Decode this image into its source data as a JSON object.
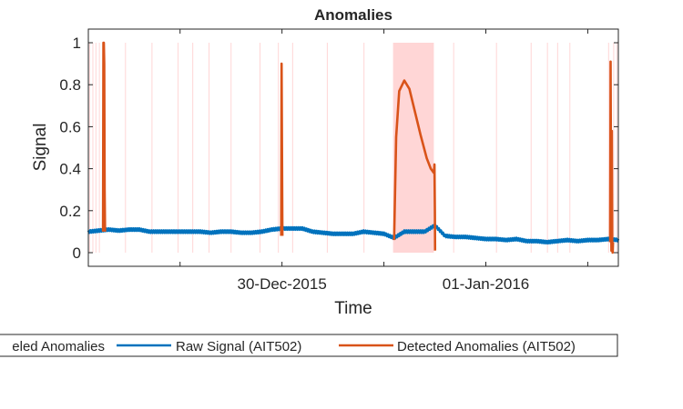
{
  "chart_data": {
    "type": "line",
    "title": "Anomalies",
    "xlabel": "Time",
    "ylabel": "Signal",
    "ylim": [
      0,
      1
    ],
    "x_range_days": [
      -0.95,
      1.65
    ],
    "y_ticks": [
      {
        "value": 0,
        "label": "0"
      },
      {
        "value": 0.2,
        "label": "0.2"
      },
      {
        "value": 0.4,
        "label": "0.4"
      },
      {
        "value": 0.6,
        "label": "0.6"
      },
      {
        "value": 0.8,
        "label": "0.8"
      },
      {
        "value": 1,
        "label": "1"
      }
    ],
    "x_ticks": [
      {
        "value": -0.5,
        "label": ""
      },
      {
        "value": 0,
        "label": "30-Dec-2015"
      },
      {
        "value": 0.5,
        "label": ""
      },
      {
        "value": 1,
        "label": "01-Jan-2016"
      },
      {
        "value": 1.5,
        "label": ""
      }
    ],
    "grid": false,
    "legend_placement": "bottom-outside",
    "labeled_anomaly_regions": [
      [
        0.545,
        0.745
      ],
      [
        -0.946,
        -0.942
      ],
      [
        -0.93,
        -0.926
      ],
      [
        -0.915,
        -0.911
      ],
      [
        -0.898,
        -0.894
      ],
      [
        -0.77,
        -0.766
      ],
      [
        -0.64,
        -0.636
      ],
      [
        -0.512,
        -0.508
      ],
      [
        -0.44,
        -0.436
      ],
      [
        -0.36,
        -0.356
      ],
      [
        -0.252,
        -0.248
      ],
      [
        -0.11,
        -0.106
      ],
      [
        -0.02,
        -0.016
      ],
      [
        0.05,
        0.054
      ],
      [
        0.22,
        0.224
      ],
      [
        0.4,
        0.404
      ],
      [
        0.84,
        0.844
      ],
      [
        1.05,
        1.054
      ],
      [
        1.22,
        1.224
      ],
      [
        1.3,
        1.304
      ],
      [
        1.35,
        1.354
      ],
      [
        1.41,
        1.414
      ],
      [
        1.6,
        1.604
      ],
      [
        1.625,
        1.629
      ],
      [
        1.64,
        1.644
      ]
    ],
    "series": [
      {
        "name": "Labeled Anomalies",
        "legend_label": "eled Anomalies",
        "color": "#FFD6D6"
      },
      {
        "name": "Raw Signal (AIT502)",
        "color": "#0072BD",
        "x": [
          -0.95,
          -0.9,
          -0.85,
          -0.8,
          -0.75,
          -0.7,
          -0.65,
          -0.6,
          -0.55,
          -0.5,
          -0.45,
          -0.4,
          -0.35,
          -0.3,
          -0.25,
          -0.2,
          -0.15,
          -0.1,
          -0.05,
          0,
          0.05,
          0.1,
          0.15,
          0.2,
          0.25,
          0.3,
          0.35,
          0.4,
          0.45,
          0.5,
          0.55,
          0.6,
          0.65,
          0.7,
          0.75,
          0.8,
          0.85,
          0.9,
          0.95,
          1,
          1.05,
          1.1,
          1.15,
          1.2,
          1.25,
          1.3,
          1.35,
          1.4,
          1.45,
          1.5,
          1.55,
          1.6,
          1.65
        ],
        "y": [
          0.1,
          0.105,
          0.11,
          0.105,
          0.11,
          0.11,
          0.1,
          0.1,
          0.1,
          0.1,
          0.1,
          0.1,
          0.095,
          0.1,
          0.1,
          0.095,
          0.095,
          0.1,
          0.11,
          0.115,
          0.115,
          0.115,
          0.1,
          0.095,
          0.09,
          0.09,
          0.09,
          0.1,
          0.095,
          0.09,
          0.07,
          0.1,
          0.1,
          0.1,
          0.13,
          0.08,
          0.075,
          0.075,
          0.07,
          0.065,
          0.065,
          0.06,
          0.065,
          0.055,
          0.055,
          0.05,
          0.055,
          0.06,
          0.055,
          0.06,
          0.06,
          0.065,
          0.06
        ]
      },
      {
        "name": "Detected Anomalies (AIT502)",
        "color": "#D95319",
        "segments": [
          {
            "x": [
              -0.878,
              -0.876,
              -0.874,
              -0.872,
              -0.87,
              -0.868
            ],
            "y": [
              0.1,
              1.0,
              1.0,
              0.9,
              0.3,
              0.1
            ]
          },
          {
            "x": [
              -0.004,
              -0.002,
              0.0,
              0.002
            ],
            "y": [
              0.08,
              0.9,
              0.5,
              0.08
            ]
          },
          {
            "x": [
              0.55,
              0.56,
              0.575,
              0.6,
              0.625,
              0.65,
              0.68,
              0.71,
              0.73,
              0.745,
              0.748,
              0.75,
              0.751
            ],
            "y": [
              0.06,
              0.55,
              0.77,
              0.82,
              0.78,
              0.68,
              0.56,
              0.45,
              0.4,
              0.38,
              0.42,
              0.2,
              0.01
            ]
          },
          {
            "x": [
              1.61,
              1.612,
              1.614,
              1.616,
              1.618,
              1.62,
              1.622,
              1.624
            ],
            "y": [
              0.05,
              0.91,
              0.3,
              0.01,
              0.58,
              0.02,
              0.0,
              0.05
            ]
          }
        ]
      }
    ]
  }
}
